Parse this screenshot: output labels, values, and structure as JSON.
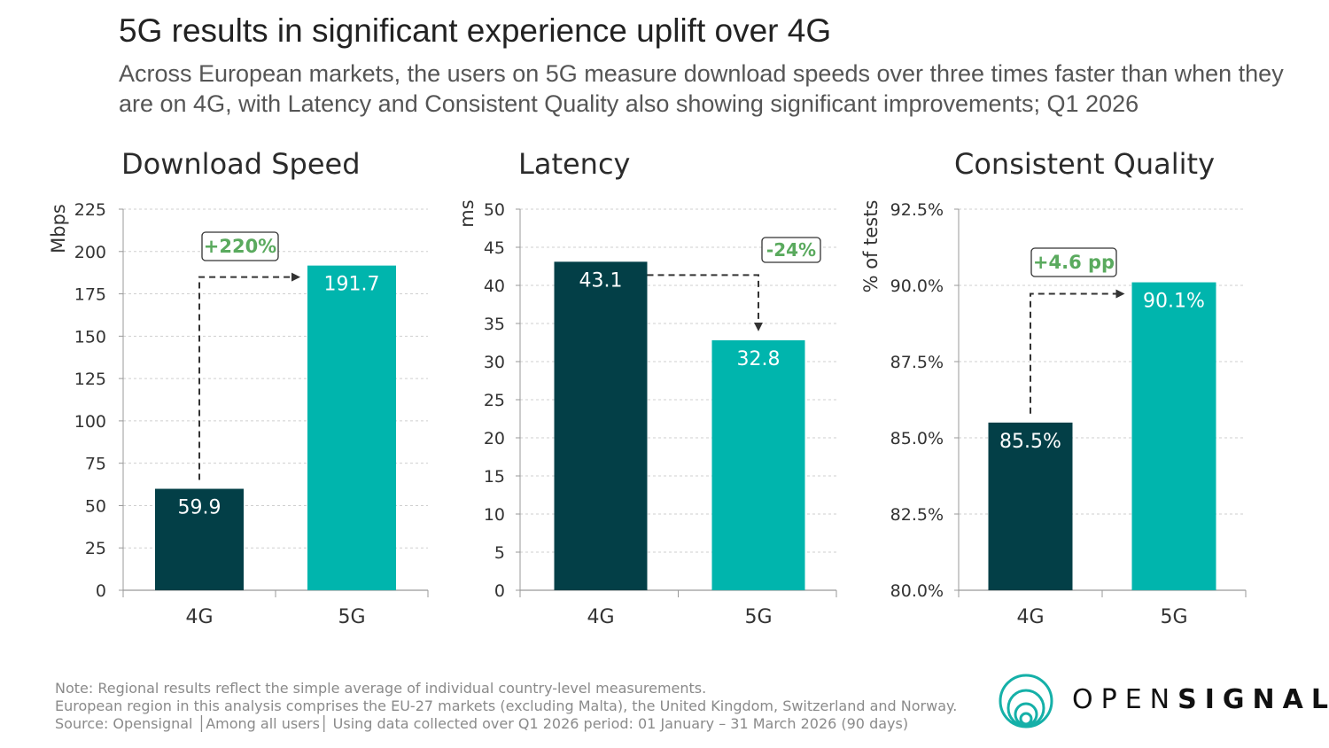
{
  "header": {
    "title": "5G results in significant experience uplift over 4G",
    "subtitle": "Across European markets, the users on 5G measure download speeds over three times faster than when they are on 4G, with Latency and Consistent Quality also showing significant improvements; Q1 2026"
  },
  "colors": {
    "g4": "#033F47",
    "g5": "#00B5AD",
    "badge": "#5AAA5E",
    "grid": "#CFCFCF",
    "axis": "#999999"
  },
  "chart_data": [
    {
      "type": "bar",
      "title": "Download Speed",
      "ylabel": "Mbps",
      "categories": [
        "4G",
        "5G"
      ],
      "values": [
        59.9,
        191.7
      ],
      "value_labels": [
        "59.9",
        "191.7"
      ],
      "ylim": [
        0,
        225
      ],
      "yticks": [
        0,
        25,
        50,
        75,
        100,
        125,
        150,
        175,
        200,
        225
      ],
      "ytick_labels": [
        "0",
        "25",
        "50",
        "75",
        "100",
        "125",
        "150",
        "175",
        "200",
        "225"
      ],
      "annotation": "+220%",
      "grid": true
    },
    {
      "type": "bar",
      "title": "Latency",
      "ylabel": "ms",
      "categories": [
        "4G",
        "5G"
      ],
      "values": [
        43.1,
        32.8
      ],
      "value_labels": [
        "43.1",
        "32.8"
      ],
      "ylim": [
        0,
        50
      ],
      "yticks": [
        0,
        5,
        10,
        15,
        20,
        25,
        30,
        35,
        40,
        45,
        50
      ],
      "ytick_labels": [
        "0",
        "5",
        "10",
        "15",
        "20",
        "25",
        "30",
        "35",
        "40",
        "45",
        "50"
      ],
      "annotation": "-24%",
      "grid": true
    },
    {
      "type": "bar",
      "title": "Consistent Quality",
      "ylabel": "% of tests",
      "categories": [
        "4G",
        "5G"
      ],
      "values": [
        85.5,
        90.1
      ],
      "value_labels": [
        "85.5%",
        "90.1%"
      ],
      "ylim": [
        80,
        92.5
      ],
      "yticks": [
        80,
        82.5,
        85,
        87.5,
        90,
        92.5
      ],
      "ytick_labels": [
        "80.0%",
        "82.5%",
        "85.0%",
        "87.5%",
        "90.0%",
        "92.5%"
      ],
      "annotation": "+4.6 pp",
      "grid": true
    }
  ],
  "footnote": {
    "line1": "Note: Regional results reflect the simple average of individual country-level measurements.",
    "line2": "European region in this analysis comprises the EU-27 markets (excluding Malta), the United Kingdom, Switzerland and Norway.",
    "line3": "Source: Opensignal  │Among all users│ Using data collected over Q1 2026 period: 01 January – 31 March 2026 (90 days)"
  },
  "logo": {
    "light": "OPEN",
    "bold": "SIGNAL"
  }
}
